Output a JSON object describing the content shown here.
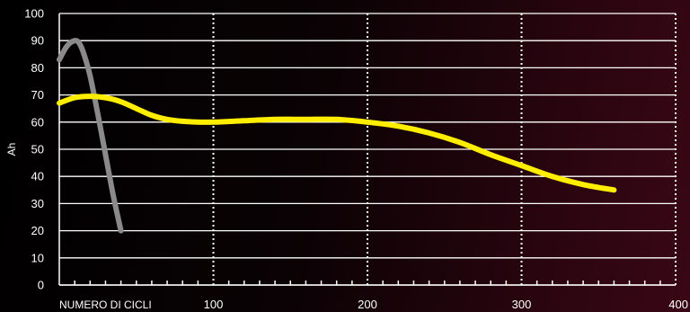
{
  "chart_data": {
    "type": "line",
    "xlabel": "NUMERO DI CICLI",
    "ylabel": "Ah",
    "xlim": [
      0,
      400
    ],
    "ylim": [
      0,
      100
    ],
    "x_ticks": [
      100,
      200,
      300,
      400
    ],
    "y_ticks": [
      0,
      10,
      20,
      30,
      40,
      50,
      60,
      70,
      80,
      90,
      100
    ],
    "grid": true,
    "colors": {
      "series_1": "#8a8a8a",
      "series_2": "#ffee00",
      "grid": "#ffffff"
    },
    "series": [
      {
        "x": [
          0,
          5,
          10,
          13,
          16,
          20,
          25,
          30,
          35,
          40
        ],
        "values": [
          83,
          88,
          90,
          89,
          85,
          77,
          63,
          48,
          33,
          20
        ]
      },
      {
        "x": [
          0,
          10,
          20,
          30,
          40,
          50,
          60,
          70,
          80,
          90,
          100,
          120,
          140,
          160,
          180,
          200,
          220,
          240,
          260,
          280,
          300,
          320,
          340,
          360
        ],
        "values": [
          67,
          69,
          69.5,
          69,
          67.5,
          65,
          62.5,
          61,
          60.3,
          60,
          60,
          60.5,
          61,
          61,
          61,
          60,
          58.5,
          56,
          52.5,
          48,
          44,
          40,
          37,
          35
        ]
      }
    ]
  }
}
